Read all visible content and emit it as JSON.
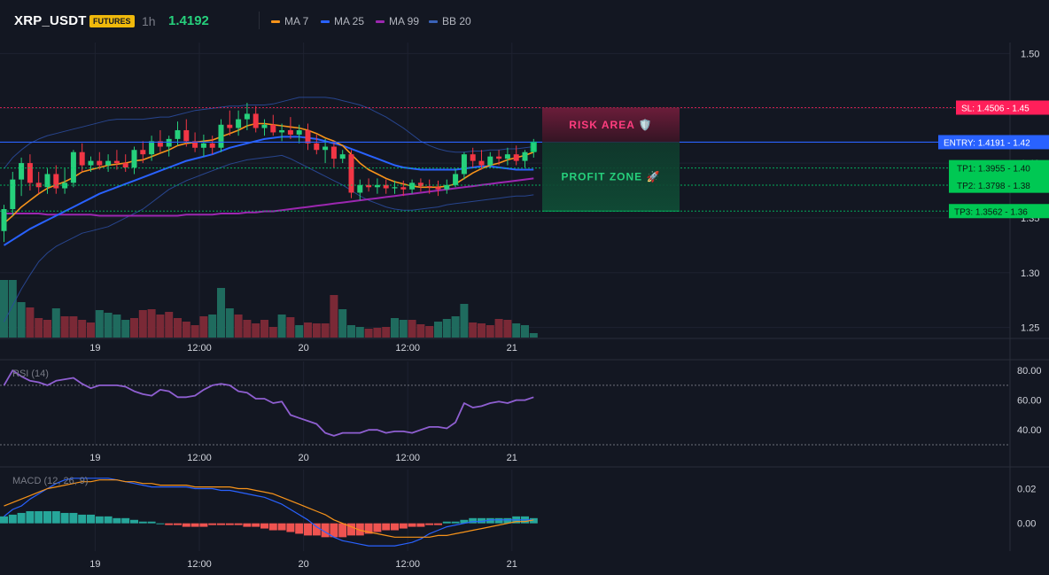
{
  "header": {
    "symbol": "XRP_USDT",
    "badge": "FUTURES",
    "interval": "1h",
    "price": "1.4192",
    "legend": [
      {
        "label": "MA 7",
        "color": "#f7931a"
      },
      {
        "label": "MA 25",
        "color": "#2962ff"
      },
      {
        "label": "MA 99",
        "color": "#9c27b0"
      },
      {
        "label": "BB 20",
        "color": "#3a62b8"
      }
    ]
  },
  "colors": {
    "background": "#131722",
    "grid": "#1e2230",
    "up": "#26d07c",
    "down": "#f23645",
    "volume_up": "#1f6b5e",
    "volume_down": "#7a2936",
    "rsi": "#8f5fd1",
    "macd_line": "#2962ff",
    "signal_line": "#f7931a",
    "hist_up": "#26a69a",
    "hist_down": "#ef5350",
    "sl": "#ff1f5a",
    "entry": "#2962ff",
    "tp": "#00d26a"
  },
  "x_axis": {
    "ticks": [
      {
        "label": "19",
        "index": 10.5
      },
      {
        "label": "12:00",
        "index": 22.5
      },
      {
        "label": "20",
        "index": 34.5
      },
      {
        "label": "12:00",
        "index": 46.5
      },
      {
        "label": "21",
        "index": 58.5
      }
    ]
  },
  "price_axis": {
    "ylim": [
      1.24,
      1.51
    ],
    "ticks": [
      "1.50",
      "1.45",
      "1.40",
      "1.35",
      "1.30",
      "1.25"
    ]
  },
  "levels": {
    "sl": {
      "label": "SL: 1.4506",
      "axis": "1.45",
      "value": 1.4506
    },
    "entry": {
      "label": "ENTRY: 1.4191",
      "axis": "1.42",
      "value": 1.4191
    },
    "tp1": {
      "label": "TP1: 1.3955",
      "axis": "1.40",
      "value": 1.3955
    },
    "tp2": {
      "label": "TP2: 1.3798",
      "axis": "1.38",
      "value": 1.3798
    },
    "tp3": {
      "label": "TP3: 1.3562",
      "axis": "1.36",
      "value": 1.3562
    }
  },
  "zones": {
    "risk": "RISK AREA 🛡️",
    "profit": "PROFIT ZONE 🚀"
  },
  "rsi_panel": {
    "label": "RSI (14)",
    "ylim": [
      30,
      86
    ],
    "ticks": [
      "80.00",
      "60.00",
      "40.00"
    ],
    "bands": [
      70,
      30
    ]
  },
  "macd_panel": {
    "label": "MACD (12, 26, 9)",
    "ylim": [
      -0.016,
      0.031
    ],
    "ticks": [
      "0.02",
      "0.00"
    ]
  },
  "chart_data": {
    "type": "candlestick",
    "candles": [
      {
        "o": 1.338,
        "h": 1.362,
        "l": 1.328,
        "c": 1.358
      },
      {
        "o": 1.358,
        "h": 1.392,
        "l": 1.352,
        "c": 1.385
      },
      {
        "o": 1.385,
        "h": 1.405,
        "l": 1.37,
        "c": 1.4
      },
      {
        "o": 1.4,
        "h": 1.408,
        "l": 1.375,
        "c": 1.382
      },
      {
        "o": 1.382,
        "h": 1.392,
        "l": 1.372,
        "c": 1.378
      },
      {
        "o": 1.378,
        "h": 1.395,
        "l": 1.372,
        "c": 1.39
      },
      {
        "o": 1.39,
        "h": 1.398,
        "l": 1.372,
        "c": 1.377
      },
      {
        "o": 1.377,
        "h": 1.395,
        "l": 1.372,
        "c": 1.382
      },
      {
        "o": 1.382,
        "h": 1.412,
        "l": 1.378,
        "c": 1.41
      },
      {
        "o": 1.41,
        "h": 1.418,
        "l": 1.392,
        "c": 1.398
      },
      {
        "o": 1.398,
        "h": 1.406,
        "l": 1.392,
        "c": 1.402
      },
      {
        "o": 1.402,
        "h": 1.41,
        "l": 1.394,
        "c": 1.398
      },
      {
        "o": 1.398,
        "h": 1.408,
        "l": 1.392,
        "c": 1.402
      },
      {
        "o": 1.402,
        "h": 1.412,
        "l": 1.394,
        "c": 1.4
      },
      {
        "o": 1.4,
        "h": 1.408,
        "l": 1.392,
        "c": 1.396
      },
      {
        "o": 1.396,
        "h": 1.415,
        "l": 1.39,
        "c": 1.412
      },
      {
        "o": 1.412,
        "h": 1.42,
        "l": 1.4,
        "c": 1.408
      },
      {
        "o": 1.408,
        "h": 1.425,
        "l": 1.402,
        "c": 1.42
      },
      {
        "o": 1.42,
        "h": 1.43,
        "l": 1.41,
        "c": 1.415
      },
      {
        "o": 1.415,
        "h": 1.425,
        "l": 1.406,
        "c": 1.422
      },
      {
        "o": 1.422,
        "h": 1.438,
        "l": 1.416,
        "c": 1.43
      },
      {
        "o": 1.43,
        "h": 1.44,
        "l": 1.415,
        "c": 1.42
      },
      {
        "o": 1.42,
        "h": 1.428,
        "l": 1.41,
        "c": 1.414
      },
      {
        "o": 1.414,
        "h": 1.426,
        "l": 1.406,
        "c": 1.418
      },
      {
        "o": 1.418,
        "h": 1.425,
        "l": 1.408,
        "c": 1.414
      },
      {
        "o": 1.414,
        "h": 1.44,
        "l": 1.41,
        "c": 1.435
      },
      {
        "o": 1.435,
        "h": 1.448,
        "l": 1.425,
        "c": 1.432
      },
      {
        "o": 1.432,
        "h": 1.448,
        "l": 1.425,
        "c": 1.44
      },
      {
        "o": 1.44,
        "h": 1.455,
        "l": 1.43,
        "c": 1.445
      },
      {
        "o": 1.445,
        "h": 1.452,
        "l": 1.428,
        "c": 1.432
      },
      {
        "o": 1.432,
        "h": 1.44,
        "l": 1.425,
        "c": 1.435
      },
      {
        "o": 1.435,
        "h": 1.444,
        "l": 1.425,
        "c": 1.428
      },
      {
        "o": 1.428,
        "h": 1.436,
        "l": 1.42,
        "c": 1.43
      },
      {
        "o": 1.43,
        "h": 1.442,
        "l": 1.422,
        "c": 1.426
      },
      {
        "o": 1.426,
        "h": 1.435,
        "l": 1.418,
        "c": 1.43
      },
      {
        "o": 1.43,
        "h": 1.436,
        "l": 1.412,
        "c": 1.418
      },
      {
        "o": 1.418,
        "h": 1.426,
        "l": 1.408,
        "c": 1.412
      },
      {
        "o": 1.412,
        "h": 1.422,
        "l": 1.4,
        "c": 1.415
      },
      {
        "o": 1.415,
        "h": 1.42,
        "l": 1.396,
        "c": 1.404
      },
      {
        "o": 1.404,
        "h": 1.412,
        "l": 1.4,
        "c": 1.408
      },
      {
        "o": 1.408,
        "h": 1.412,
        "l": 1.368,
        "c": 1.373
      },
      {
        "o": 1.373,
        "h": 1.385,
        "l": 1.366,
        "c": 1.38
      },
      {
        "o": 1.38,
        "h": 1.386,
        "l": 1.374,
        "c": 1.378
      },
      {
        "o": 1.378,
        "h": 1.386,
        "l": 1.372,
        "c": 1.38
      },
      {
        "o": 1.38,
        "h": 1.385,
        "l": 1.372,
        "c": 1.377
      },
      {
        "o": 1.377,
        "h": 1.384,
        "l": 1.372,
        "c": 1.378
      },
      {
        "o": 1.378,
        "h": 1.384,
        "l": 1.37,
        "c": 1.376
      },
      {
        "o": 1.376,
        "h": 1.385,
        "l": 1.372,
        "c": 1.382
      },
      {
        "o": 1.382,
        "h": 1.386,
        "l": 1.374,
        "c": 1.379
      },
      {
        "o": 1.379,
        "h": 1.385,
        "l": 1.372,
        "c": 1.378
      },
      {
        "o": 1.378,
        "h": 1.384,
        "l": 1.37,
        "c": 1.376
      },
      {
        "o": 1.376,
        "h": 1.385,
        "l": 1.372,
        "c": 1.38
      },
      {
        "o": 1.38,
        "h": 1.395,
        "l": 1.378,
        "c": 1.39
      },
      {
        "o": 1.39,
        "h": 1.41,
        "l": 1.385,
        "c": 1.408
      },
      {
        "o": 1.408,
        "h": 1.414,
        "l": 1.396,
        "c": 1.402
      },
      {
        "o": 1.402,
        "h": 1.412,
        "l": 1.394,
        "c": 1.398
      },
      {
        "o": 1.398,
        "h": 1.41,
        "l": 1.396,
        "c": 1.406
      },
      {
        "o": 1.406,
        "h": 1.412,
        "l": 1.398,
        "c": 1.404
      },
      {
        "o": 1.404,
        "h": 1.414,
        "l": 1.398,
        "c": 1.408
      },
      {
        "o": 1.408,
        "h": 1.416,
        "l": 1.398,
        "c": 1.402
      },
      {
        "o": 1.402,
        "h": 1.412,
        "l": 1.396,
        "c": 1.41
      },
      {
        "o": 1.41,
        "h": 1.422,
        "l": 1.405,
        "c": 1.419
      }
    ],
    "ma7": [
      1.345,
      1.352,
      1.36,
      1.366,
      1.372,
      1.377,
      1.38,
      1.383,
      1.387,
      1.392,
      1.394,
      1.396,
      1.398,
      1.399,
      1.4,
      1.402,
      1.403,
      1.406,
      1.409,
      1.412,
      1.416,
      1.418,
      1.419,
      1.42,
      1.421,
      1.424,
      1.427,
      1.43,
      1.434,
      1.436,
      1.436,
      1.435,
      1.434,
      1.433,
      1.432,
      1.43,
      1.427,
      1.423,
      1.42,
      1.416,
      1.408,
      1.4,
      1.394,
      1.39,
      1.386,
      1.383,
      1.381,
      1.379,
      1.378,
      1.378,
      1.378,
      1.379,
      1.381,
      1.386,
      1.391,
      1.395,
      1.398,
      1.4,
      1.403,
      1.405,
      1.407,
      1.41
    ],
    "ma25": [
      1.325,
      1.33,
      1.335,
      1.34,
      1.344,
      1.348,
      1.352,
      1.356,
      1.36,
      1.364,
      1.368,
      1.372,
      1.375,
      1.378,
      1.381,
      1.384,
      1.387,
      1.39,
      1.393,
      1.396,
      1.399,
      1.402,
      1.404,
      1.406,
      1.408,
      1.411,
      1.414,
      1.416,
      1.418,
      1.42,
      1.422,
      1.423,
      1.424,
      1.424,
      1.424,
      1.423,
      1.422,
      1.42,
      1.418,
      1.416,
      1.413,
      1.41,
      1.407,
      1.404,
      1.401,
      1.398,
      1.396,
      1.395,
      1.394,
      1.394,
      1.394,
      1.394,
      1.394,
      1.395,
      1.396,
      1.397,
      1.397,
      1.396,
      1.395,
      1.394,
      1.394,
      1.394
    ],
    "ma99": [
      1.354,
      1.354,
      1.354,
      1.354,
      1.354,
      1.353,
      1.353,
      1.353,
      1.353,
      1.353,
      1.353,
      1.352,
      1.352,
      1.352,
      1.352,
      1.352,
      1.352,
      1.352,
      1.352,
      1.352,
      1.352,
      1.353,
      1.353,
      1.353,
      1.353,
      1.354,
      1.354,
      1.354,
      1.355,
      1.355,
      1.356,
      1.356,
      1.357,
      1.358,
      1.359,
      1.36,
      1.361,
      1.362,
      1.363,
      1.364,
      1.365,
      1.366,
      1.367,
      1.368,
      1.369,
      1.37,
      1.371,
      1.372,
      1.373,
      1.374,
      1.375,
      1.376,
      1.377,
      1.378,
      1.379,
      1.38,
      1.381,
      1.382,
      1.383,
      1.384,
      1.385,
      1.386
    ],
    "bb_upper": [
      1.395,
      1.405,
      1.412,
      1.418,
      1.422,
      1.425,
      1.427,
      1.429,
      1.431,
      1.433,
      1.435,
      1.437,
      1.439,
      1.44,
      1.44,
      1.44,
      1.44,
      1.441,
      1.442,
      1.442,
      1.444,
      1.446,
      1.448,
      1.449,
      1.45,
      1.451,
      1.452,
      1.452,
      1.453,
      1.453,
      1.453,
      1.454,
      1.456,
      1.458,
      1.46,
      1.46,
      1.46,
      1.46,
      1.459,
      1.457,
      1.455,
      1.453,
      1.45,
      1.446,
      1.442,
      1.437,
      1.432,
      1.426,
      1.42,
      1.416,
      1.413,
      1.411,
      1.41,
      1.41,
      1.411,
      1.411,
      1.412,
      1.412,
      1.413,
      1.413,
      1.414,
      1.415
    ],
    "bb_lower": [
      1.255,
      1.27,
      1.285,
      1.298,
      1.31,
      1.318,
      1.324,
      1.328,
      1.332,
      1.336,
      1.338,
      1.34,
      1.342,
      1.346,
      1.35,
      1.354,
      1.358,
      1.364,
      1.37,
      1.376,
      1.38,
      1.384,
      1.387,
      1.39,
      1.393,
      1.396,
      1.399,
      1.401,
      1.403,
      1.404,
      1.405,
      1.406,
      1.407,
      1.404,
      1.4,
      1.396,
      1.392,
      1.388,
      1.384,
      1.38,
      1.375,
      1.37,
      1.366,
      1.363,
      1.36,
      1.358,
      1.357,
      1.357,
      1.358,
      1.359,
      1.36,
      1.362,
      1.363,
      1.364,
      1.365,
      1.366,
      1.367,
      1.368,
      1.369,
      1.37,
      1.37,
      1.371
    ],
    "volume": [
      {
        "v": 65,
        "up": 1
      },
      {
        "v": 65,
        "up": 1
      },
      {
        "v": 40,
        "up": 1
      },
      {
        "v": 34,
        "up": 0
      },
      {
        "v": 22,
        "up": 0
      },
      {
        "v": 20,
        "up": 0
      },
      {
        "v": 33,
        "up": 1
      },
      {
        "v": 24,
        "up": 0
      },
      {
        "v": 24,
        "up": 0
      },
      {
        "v": 20,
        "up": 0
      },
      {
        "v": 17,
        "up": 0
      },
      {
        "v": 31,
        "up": 1
      },
      {
        "v": 28,
        "up": 1
      },
      {
        "v": 26,
        "up": 1
      },
      {
        "v": 20,
        "up": 1
      },
      {
        "v": 22,
        "up": 0
      },
      {
        "v": 31,
        "up": 0
      },
      {
        "v": 32,
        "up": 0
      },
      {
        "v": 26,
        "up": 0
      },
      {
        "v": 29,
        "up": 0
      },
      {
        "v": 22,
        "up": 0
      },
      {
        "v": 18,
        "up": 0
      },
      {
        "v": 14,
        "up": 0
      },
      {
        "v": 24,
        "up": 0
      },
      {
        "v": 26,
        "up": 1
      },
      {
        "v": 56,
        "up": 1
      },
      {
        "v": 33,
        "up": 1
      },
      {
        "v": 26,
        "up": 0
      },
      {
        "v": 20,
        "up": 0
      },
      {
        "v": 16,
        "up": 0
      },
      {
        "v": 20,
        "up": 0
      },
      {
        "v": 12,
        "up": 0
      },
      {
        "v": 26,
        "up": 1
      },
      {
        "v": 23,
        "up": 0
      },
      {
        "v": 14,
        "up": 1
      },
      {
        "v": 17,
        "up": 0
      },
      {
        "v": 16,
        "up": 0
      },
      {
        "v": 16,
        "up": 0
      },
      {
        "v": 48,
        "up": 0
      },
      {
        "v": 32,
        "up": 1
      },
      {
        "v": 14,
        "up": 1
      },
      {
        "v": 12,
        "up": 1
      },
      {
        "v": 10,
        "up": 0
      },
      {
        "v": 11,
        "up": 0
      },
      {
        "v": 12,
        "up": 0
      },
      {
        "v": 22,
        "up": 1
      },
      {
        "v": 20,
        "up": 1
      },
      {
        "v": 20,
        "up": 0
      },
      {
        "v": 15,
        "up": 0
      },
      {
        "v": 13,
        "up": 0
      },
      {
        "v": 18,
        "up": 1
      },
      {
        "v": 21,
        "up": 1
      },
      {
        "v": 24,
        "up": 1
      },
      {
        "v": 38,
        "up": 1
      },
      {
        "v": 17,
        "up": 0
      },
      {
        "v": 16,
        "up": 0
      },
      {
        "v": 14,
        "up": 0
      },
      {
        "v": 21,
        "up": 0
      },
      {
        "v": 20,
        "up": 0
      },
      {
        "v": 16,
        "up": 1
      },
      {
        "v": 14,
        "up": 1
      },
      {
        "v": 5,
        "up": 1
      }
    ],
    "rsi": [
      70,
      80,
      76,
      73,
      72,
      70,
      73,
      74,
      75,
      71,
      68,
      70,
      70,
      70,
      69,
      66,
      64,
      63,
      67,
      66,
      62,
      62,
      63,
      67,
      70,
      71,
      70,
      66,
      65,
      61,
      61,
      58,
      59,
      50,
      48,
      46,
      44,
      38,
      36,
      38,
      38,
      38,
      40,
      40,
      38,
      39,
      39,
      38,
      40,
      42,
      42,
      41,
      45,
      58,
      55,
      56,
      58,
      59,
      58,
      60,
      60,
      62
    ],
    "macd": [
      0.004,
      0.008,
      0.01,
      0.014,
      0.017,
      0.02,
      0.023,
      0.025,
      0.026,
      0.026,
      0.026,
      0.026,
      0.026,
      0.025,
      0.024,
      0.023,
      0.022,
      0.021,
      0.021,
      0.021,
      0.021,
      0.021,
      0.02,
      0.02,
      0.02,
      0.019,
      0.019,
      0.018,
      0.017,
      0.016,
      0.015,
      0.013,
      0.011,
      0.008,
      0.005,
      0.002,
      -0.002,
      -0.005,
      -0.008,
      -0.01,
      -0.011,
      -0.012,
      -0.013,
      -0.013,
      -0.013,
      -0.013,
      -0.012,
      -0.011,
      -0.009,
      -0.006,
      -0.004,
      -0.002,
      -0.001,
      0.0,
      0.001,
      0.001,
      0.002,
      0.002,
      0.002,
      0.002,
      0.002,
      0.002
    ],
    "signal": [
      0.01,
      0.012,
      0.014,
      0.016,
      0.018,
      0.02,
      0.021,
      0.022,
      0.023,
      0.024,
      0.024,
      0.025,
      0.025,
      0.025,
      0.024,
      0.024,
      0.023,
      0.023,
      0.022,
      0.022,
      0.022,
      0.022,
      0.021,
      0.021,
      0.021,
      0.021,
      0.021,
      0.02,
      0.02,
      0.019,
      0.018,
      0.017,
      0.015,
      0.013,
      0.011,
      0.009,
      0.007,
      0.005,
      0.002,
      0.0,
      -0.002,
      -0.004,
      -0.005,
      -0.006,
      -0.007,
      -0.008,
      -0.008,
      -0.008,
      -0.008,
      -0.008,
      -0.007,
      -0.007,
      -0.006,
      -0.005,
      -0.004,
      -0.003,
      -0.002,
      -0.001,
      0.0,
      0.001,
      0.001,
      0.002
    ],
    "hist": [
      0.004,
      0.005,
      0.006,
      0.007,
      0.007,
      0.007,
      0.007,
      0.006,
      0.006,
      0.005,
      0.005,
      0.004,
      0.004,
      0.003,
      0.003,
      0.002,
      0.001,
      0.001,
      0.0,
      -0.001,
      -0.001,
      -0.002,
      -0.002,
      -0.002,
      -0.001,
      -0.001,
      -0.001,
      -0.001,
      -0.002,
      -0.002,
      -0.003,
      -0.004,
      -0.004,
      -0.005,
      -0.006,
      -0.007,
      -0.007,
      -0.008,
      -0.008,
      -0.008,
      -0.007,
      -0.007,
      -0.006,
      -0.005,
      -0.004,
      -0.004,
      -0.003,
      -0.002,
      -0.002,
      -0.001,
      -0.001,
      0.001,
      0.001,
      0.002,
      0.003,
      0.003,
      0.003,
      0.003,
      0.003,
      0.004,
      0.004,
      0.003
    ]
  }
}
